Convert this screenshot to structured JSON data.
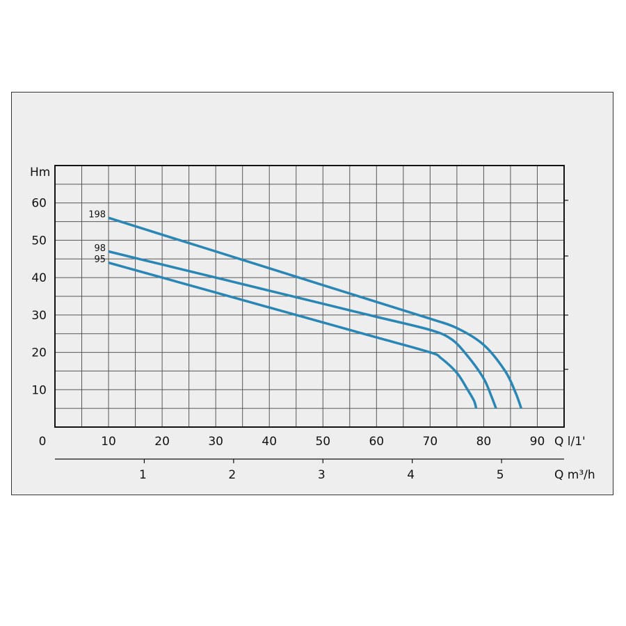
{
  "chart_data": {
    "type": "line",
    "ylabel": "Hm",
    "xlabel_primary": "Q l/1'",
    "xlabel_secondary": "Q m³/h",
    "xlim": [
      0,
      95
    ],
    "ylim": [
      0,
      70
    ],
    "x_ticks": [
      "0",
      "10",
      "20",
      "30",
      "40",
      "50",
      "60",
      "70",
      "80",
      "90"
    ],
    "x_tick_values": [
      0,
      10,
      20,
      30,
      40,
      50,
      60,
      70,
      80,
      90
    ],
    "y_ticks": [
      "10",
      "20",
      "30",
      "40",
      "50",
      "60"
    ],
    "y_tick_values": [
      10,
      20,
      30,
      40,
      50,
      60
    ],
    "secondary_ticks": [
      "1",
      "2",
      "3",
      "4",
      "5"
    ],
    "secondary_tick_values": [
      1,
      2,
      3,
      4,
      5
    ],
    "grid": true,
    "series": [
      {
        "name": "198",
        "color": "#2a86b4",
        "x": [
          10,
          20,
          30,
          40,
          50,
          60,
          70,
          75,
          80,
          84,
          86,
          87
        ],
        "y": [
          56,
          51.5,
          47,
          42.5,
          38,
          33.5,
          29,
          26.5,
          22,
          15,
          9,
          5
        ]
      },
      {
        "name": "98",
        "color": "#2a86b4",
        "x": [
          10,
          20,
          30,
          40,
          50,
          60,
          70,
          74,
          77,
          80,
          81.5,
          82.3
        ],
        "y": [
          47,
          43.5,
          40,
          36.5,
          33,
          29.5,
          26,
          23.5,
          19,
          13,
          8,
          5
        ]
      },
      {
        "name": "95",
        "color": "#2a86b4",
        "x": [
          10,
          20,
          30,
          40,
          50,
          60,
          70,
          72,
          75,
          77,
          78.2,
          78.6
        ],
        "y": [
          44,
          40,
          36,
          32,
          28,
          24,
          20,
          18.5,
          14.5,
          10,
          7,
          5
        ]
      }
    ]
  }
}
